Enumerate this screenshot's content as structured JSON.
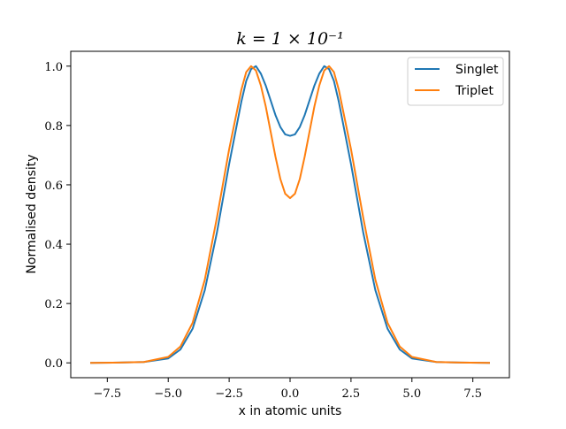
{
  "chart_data": {
    "type": "line",
    "title": "k = 1 × 10⁻¹",
    "xlabel": "x in atomic units",
    "ylabel": "Normalised density",
    "xlim": [
      -9.0,
      9.0
    ],
    "ylim": [
      -0.05,
      1.05
    ],
    "xticks": [
      -7.5,
      -5.0,
      -2.5,
      0.0,
      2.5,
      5.0,
      7.5
    ],
    "xtick_labels": [
      "−7.5",
      "−5.0",
      "−2.5",
      "0.0",
      "2.5",
      "5.0",
      "7.5"
    ],
    "yticks": [
      0.0,
      0.2,
      0.4,
      0.6,
      0.8,
      1.0
    ],
    "ytick_labels": [
      "0.0",
      "0.2",
      "0.4",
      "0.6",
      "0.8",
      "1.0"
    ],
    "grid": false,
    "legend_position": "top-right",
    "x": [
      -8.2,
      -7.0,
      -6.0,
      -5.0,
      -4.5,
      -4.0,
      -3.5,
      -3.0,
      -2.5,
      -2.0,
      -1.8,
      -1.6,
      -1.4,
      -1.2,
      -1.0,
      -0.8,
      -0.6,
      -0.4,
      -0.2,
      0.0,
      0.2,
      0.4,
      0.6,
      0.8,
      1.0,
      1.2,
      1.4,
      1.6,
      1.8,
      2.0,
      2.5,
      3.0,
      3.5,
      4.0,
      4.5,
      5.0,
      6.0,
      7.0,
      8.2
    ],
    "series": [
      {
        "name": "Singlet",
        "color": "#1f77b4",
        "values": [
          0.0,
          0.001,
          0.003,
          0.015,
          0.045,
          0.115,
          0.245,
          0.44,
          0.67,
          0.88,
          0.95,
          0.99,
          1.0,
          0.975,
          0.935,
          0.885,
          0.835,
          0.795,
          0.77,
          0.765,
          0.77,
          0.795,
          0.835,
          0.885,
          0.935,
          0.975,
          1.0,
          0.99,
          0.95,
          0.88,
          0.67,
          0.44,
          0.245,
          0.115,
          0.045,
          0.015,
          0.003,
          0.001,
          0.0
        ]
      },
      {
        "name": "Triplet",
        "color": "#ff7f0e",
        "values": [
          0.0,
          0.001,
          0.003,
          0.02,
          0.055,
          0.135,
          0.28,
          0.49,
          0.72,
          0.92,
          0.98,
          1.0,
          0.985,
          0.935,
          0.865,
          0.78,
          0.695,
          0.62,
          0.57,
          0.555,
          0.57,
          0.62,
          0.695,
          0.78,
          0.865,
          0.935,
          0.985,
          1.0,
          0.98,
          0.92,
          0.72,
          0.49,
          0.28,
          0.135,
          0.055,
          0.02,
          0.003,
          0.001,
          0.0
        ]
      }
    ]
  }
}
